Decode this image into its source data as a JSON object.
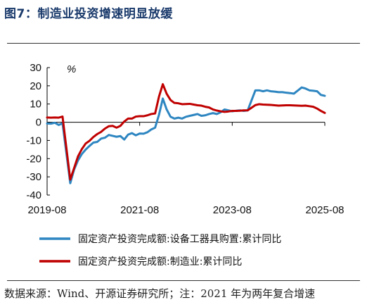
{
  "header": {
    "title": "图7：制造业投资增速明显放缓"
  },
  "footer": {
    "source": "数据来源：Wind、开源证券研究所；注：2021 年为两年复合增速"
  },
  "chart_data": {
    "type": "line",
    "unit_label": "%",
    "ylim": [
      -40,
      30
    ],
    "yticks": [
      30,
      20,
      10,
      0,
      -10,
      -20,
      -30,
      -40
    ],
    "xlim": [
      "2019-08",
      "2025-08"
    ],
    "xticks": [
      "2019-08",
      "2021-08",
      "2023-08",
      "2025-08"
    ],
    "legend_position": "bottom",
    "grid": false,
    "series": [
      {
        "name": "固定资产投资完成额:设备工器具购置:累计同比",
        "color": "#2e86c1",
        "points": [
          [
            "2019-08",
            -0.7
          ],
          [
            "2019-09",
            -0.8
          ],
          [
            "2019-10",
            -0.3
          ],
          [
            "2019-11",
            -1.5
          ],
          [
            "2019-12",
            -0.6
          ],
          [
            "2020-02",
            -33.5
          ],
          [
            "2020-03",
            -26.0
          ],
          [
            "2020-04",
            -21.0
          ],
          [
            "2020-05",
            -17.5
          ],
          [
            "2020-06",
            -15.0
          ],
          [
            "2020-07",
            -13.0
          ],
          [
            "2020-08",
            -11.2
          ],
          [
            "2020-09",
            -10.8
          ],
          [
            "2020-10",
            -9.0
          ],
          [
            "2020-11",
            -8.5
          ],
          [
            "2020-12",
            -7.0
          ],
          [
            "2021-01",
            -7.5
          ],
          [
            "2021-02",
            -8.0
          ],
          [
            "2021-03",
            -7.6
          ],
          [
            "2021-04",
            -9.5
          ],
          [
            "2021-05",
            -6.8
          ],
          [
            "2021-06",
            -6.0
          ],
          [
            "2021-07",
            -7.2
          ],
          [
            "2021-08",
            -6.2
          ],
          [
            "2021-09",
            -6.3
          ],
          [
            "2021-10",
            -5.5
          ],
          [
            "2021-11",
            -4.0
          ],
          [
            "2021-12",
            -3.0
          ],
          [
            "2022-01",
            4.0
          ],
          [
            "2022-02",
            13.0
          ],
          [
            "2022-03",
            7.0
          ],
          [
            "2022-04",
            3.0
          ],
          [
            "2022-05",
            2.0
          ],
          [
            "2022-06",
            2.5
          ],
          [
            "2022-07",
            2.0
          ],
          [
            "2022-08",
            3.0
          ],
          [
            "2022-09",
            3.5
          ],
          [
            "2022-10",
            4.0
          ],
          [
            "2022-11",
            4.5
          ],
          [
            "2022-12",
            3.5
          ],
          [
            "2023-01",
            3.8
          ],
          [
            "2023-02",
            4.5
          ],
          [
            "2023-03",
            5.0
          ],
          [
            "2023-04",
            4.5
          ],
          [
            "2023-05",
            5.5
          ],
          [
            "2023-06",
            7.0
          ],
          [
            "2023-07",
            6.5
          ],
          [
            "2023-08",
            6.0
          ],
          [
            "2023-09",
            6.3
          ],
          [
            "2023-10",
            6.5
          ],
          [
            "2023-11",
            6.2
          ],
          [
            "2023-12",
            6.5
          ],
          [
            "2024-02",
            17.5
          ],
          [
            "2024-03",
            17.5
          ],
          [
            "2024-04",
            17.0
          ],
          [
            "2024-05",
            17.5
          ],
          [
            "2024-06",
            17.0
          ],
          [
            "2024-07",
            16.8
          ],
          [
            "2024-08",
            16.5
          ],
          [
            "2024-09",
            16.5
          ],
          [
            "2024-10",
            16.2
          ],
          [
            "2024-11",
            16.0
          ],
          [
            "2024-12",
            15.7
          ],
          [
            "2025-02",
            19.1
          ],
          [
            "2025-03",
            18.5
          ],
          [
            "2025-04",
            17.5
          ],
          [
            "2025-05",
            17.3
          ],
          [
            "2025-06",
            17.0
          ],
          [
            "2025-07",
            15.0
          ],
          [
            "2025-08",
            14.5
          ]
        ]
      },
      {
        "name": "固定资产投资完成额:制造业:累计同比",
        "color": "#c00000",
        "points": [
          [
            "2019-08",
            2.6
          ],
          [
            "2019-09",
            2.5
          ],
          [
            "2019-10",
            2.6
          ],
          [
            "2019-11",
            2.5
          ],
          [
            "2019-12",
            3.1
          ],
          [
            "2020-02",
            -31.5
          ],
          [
            "2020-03",
            -25.2
          ],
          [
            "2020-04",
            -18.8
          ],
          [
            "2020-05",
            -14.8
          ],
          [
            "2020-06",
            -11.7
          ],
          [
            "2020-07",
            -10.2
          ],
          [
            "2020-08",
            -8.1
          ],
          [
            "2020-09",
            -6.5
          ],
          [
            "2020-10",
            -5.3
          ],
          [
            "2020-11",
            -3.5
          ],
          [
            "2020-12",
            -2.2
          ],
          [
            "2021-01",
            -2.0
          ],
          [
            "2021-02",
            -3.0
          ],
          [
            "2021-03",
            -2.0
          ],
          [
            "2021-04",
            0.4
          ],
          [
            "2021-05",
            2.0
          ],
          [
            "2021-06",
            2.0
          ],
          [
            "2021-07",
            3.1
          ],
          [
            "2021-08",
            3.3
          ],
          [
            "2021-09",
            3.3
          ],
          [
            "2021-10",
            3.8
          ],
          [
            "2021-11",
            4.5
          ],
          [
            "2021-12",
            4.8
          ],
          [
            "2022-01",
            14.0
          ],
          [
            "2022-02",
            20.9
          ],
          [
            "2022-03",
            15.6
          ],
          [
            "2022-04",
            12.2
          ],
          [
            "2022-05",
            10.6
          ],
          [
            "2022-06",
            10.4
          ],
          [
            "2022-07",
            9.9
          ],
          [
            "2022-08",
            10.0
          ],
          [
            "2022-09",
            10.1
          ],
          [
            "2022-10",
            9.7
          ],
          [
            "2022-11",
            9.3
          ],
          [
            "2022-12",
            9.1
          ],
          [
            "2023-01",
            8.5
          ],
          [
            "2023-02",
            8.1
          ],
          [
            "2023-03",
            7.0
          ],
          [
            "2023-04",
            6.4
          ],
          [
            "2023-05",
            6.0
          ],
          [
            "2023-06",
            5.7
          ],
          [
            "2023-07",
            5.9
          ],
          [
            "2023-08",
            6.2
          ],
          [
            "2023-09",
            6.2
          ],
          [
            "2023-10",
            6.3
          ],
          [
            "2023-11",
            6.5
          ],
          [
            "2023-12",
            6.5
          ],
          [
            "2024-02",
            9.4
          ],
          [
            "2024-03",
            9.9
          ],
          [
            "2024-04",
            9.7
          ],
          [
            "2024-05",
            9.6
          ],
          [
            "2024-06",
            9.5
          ],
          [
            "2024-07",
            9.3
          ],
          [
            "2024-08",
            9.1
          ],
          [
            "2024-09",
            9.2
          ],
          [
            "2024-10",
            9.3
          ],
          [
            "2024-11",
            9.3
          ],
          [
            "2024-12",
            9.2
          ],
          [
            "2025-02",
            9.0
          ],
          [
            "2025-03",
            9.1
          ],
          [
            "2025-04",
            8.8
          ],
          [
            "2025-05",
            8.5
          ],
          [
            "2025-06",
            7.5
          ],
          [
            "2025-07",
            6.2
          ],
          [
            "2025-08",
            5.1
          ]
        ]
      }
    ]
  }
}
